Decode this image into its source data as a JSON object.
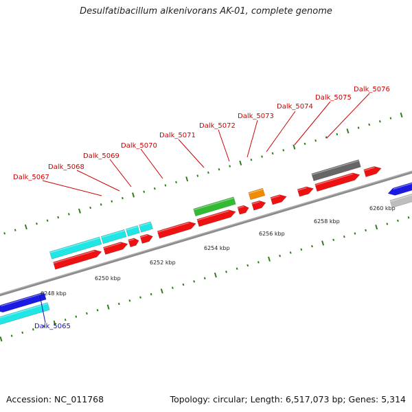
{
  "header": {
    "title": "Desulfatibacillum alkenivorans AK-01, complete genome"
  },
  "footer": {
    "accession": "Accession: NC_011768",
    "summary": "Topology: circular; Length: 6,517,073 bp; Genes: 5,314"
  },
  "colors": {
    "backbone": "#8c8c8c",
    "tick": "#2e7d1b",
    "label_red": "#cc0000",
    "label_blue": "#1010c0",
    "gene_red": "#ee1111",
    "gene_cyan": "#22e6e6",
    "gene_blue": "#1a1ae0",
    "gene_green": "#33bb33",
    "gene_orange": "#f08c00",
    "gene_darkgray": "#666666",
    "gene_lightgray": "#bdbdbd"
  },
  "scale_labels": [
    {
      "kbp": 6248,
      "text": "6248 kbp"
    },
    {
      "kbp": 6250,
      "text": "6250 kbp"
    },
    {
      "kbp": 6252,
      "text": "6252 kbp"
    },
    {
      "kbp": 6254,
      "text": "6254 kbp"
    },
    {
      "kbp": 6256,
      "text": "6256 kbp"
    },
    {
      "kbp": 6258,
      "text": "6258 kbp"
    },
    {
      "kbp": 6260,
      "text": "6260 kbp"
    }
  ],
  "gene_labels": [
    {
      "text": "Dalk_5065",
      "color": "label_blue"
    },
    {
      "text": "Dalk_5067",
      "color": "label_red"
    },
    {
      "text": "Dalk_5068",
      "color": "label_red"
    },
    {
      "text": "Dalk_5069",
      "color": "label_red"
    },
    {
      "text": "Dalk_5070",
      "color": "label_red"
    },
    {
      "text": "Dalk_5071",
      "color": "label_red"
    },
    {
      "text": "Dalk_5072",
      "color": "label_red"
    },
    {
      "text": "Dalk_5073",
      "color": "label_red"
    },
    {
      "text": "Dalk_5074",
      "color": "label_red"
    },
    {
      "text": "Dalk_5075",
      "color": "label_red"
    },
    {
      "text": "Dalk_5076",
      "color": "label_red"
    }
  ]
}
